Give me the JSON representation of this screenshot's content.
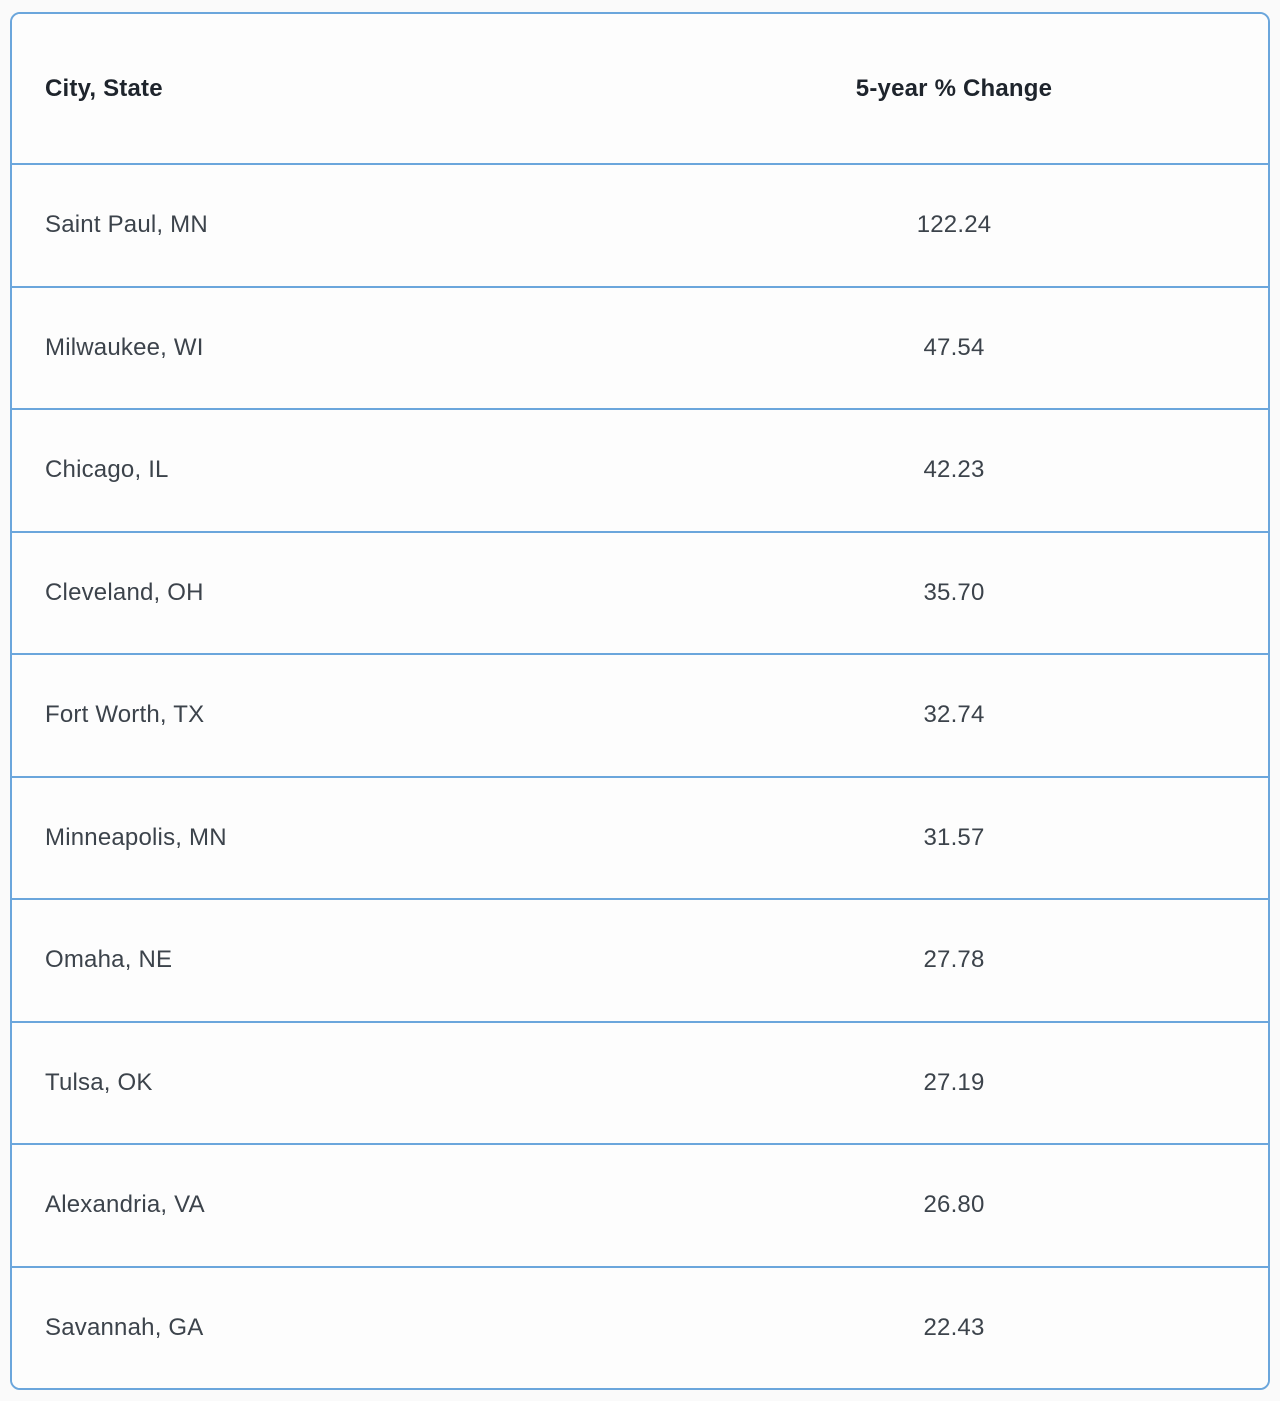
{
  "table": {
    "columns": [
      {
        "label": "City, State"
      },
      {
        "label": "5-year % Change"
      }
    ],
    "rows": [
      {
        "city": "Saint Paul, MN",
        "change": "122.24"
      },
      {
        "city": "Milwaukee, WI",
        "change": "47.54"
      },
      {
        "city": "Chicago, IL",
        "change": "42.23"
      },
      {
        "city": "Cleveland, OH",
        "change": "35.70"
      },
      {
        "city": "Fort Worth, TX",
        "change": "32.74"
      },
      {
        "city": "Minneapolis, MN",
        "change": "31.57"
      },
      {
        "city": "Omaha, NE",
        "change": "27.78"
      },
      {
        "city": "Tulsa, OK",
        "change": "27.19"
      },
      {
        "city": "Alexandria, VA",
        "change": "26.80"
      },
      {
        "city": "Savannah, GA",
        "change": "22.43"
      }
    ]
  },
  "chart_data": {
    "type": "table",
    "title": "",
    "columns": [
      "City, State",
      "5-year % Change"
    ],
    "rows": [
      [
        "Saint Paul, MN",
        122.24
      ],
      [
        "Milwaukee, WI",
        47.54
      ],
      [
        "Chicago, IL",
        42.23
      ],
      [
        "Cleveland, OH",
        35.7
      ],
      [
        "Fort Worth, TX",
        32.74
      ],
      [
        "Minneapolis, MN",
        31.57
      ],
      [
        "Omaha, NE",
        27.78
      ],
      [
        "Tulsa, OK",
        27.19
      ],
      [
        "Alexandria, VA",
        26.8
      ],
      [
        "Savannah, GA",
        22.43
      ]
    ]
  },
  "colors": {
    "border": "#6ba6dc",
    "header_text": "#1e242c",
    "cell_text": "#3c434b",
    "page_background": "#fafafa",
    "table_background": "#fdfdfd"
  }
}
